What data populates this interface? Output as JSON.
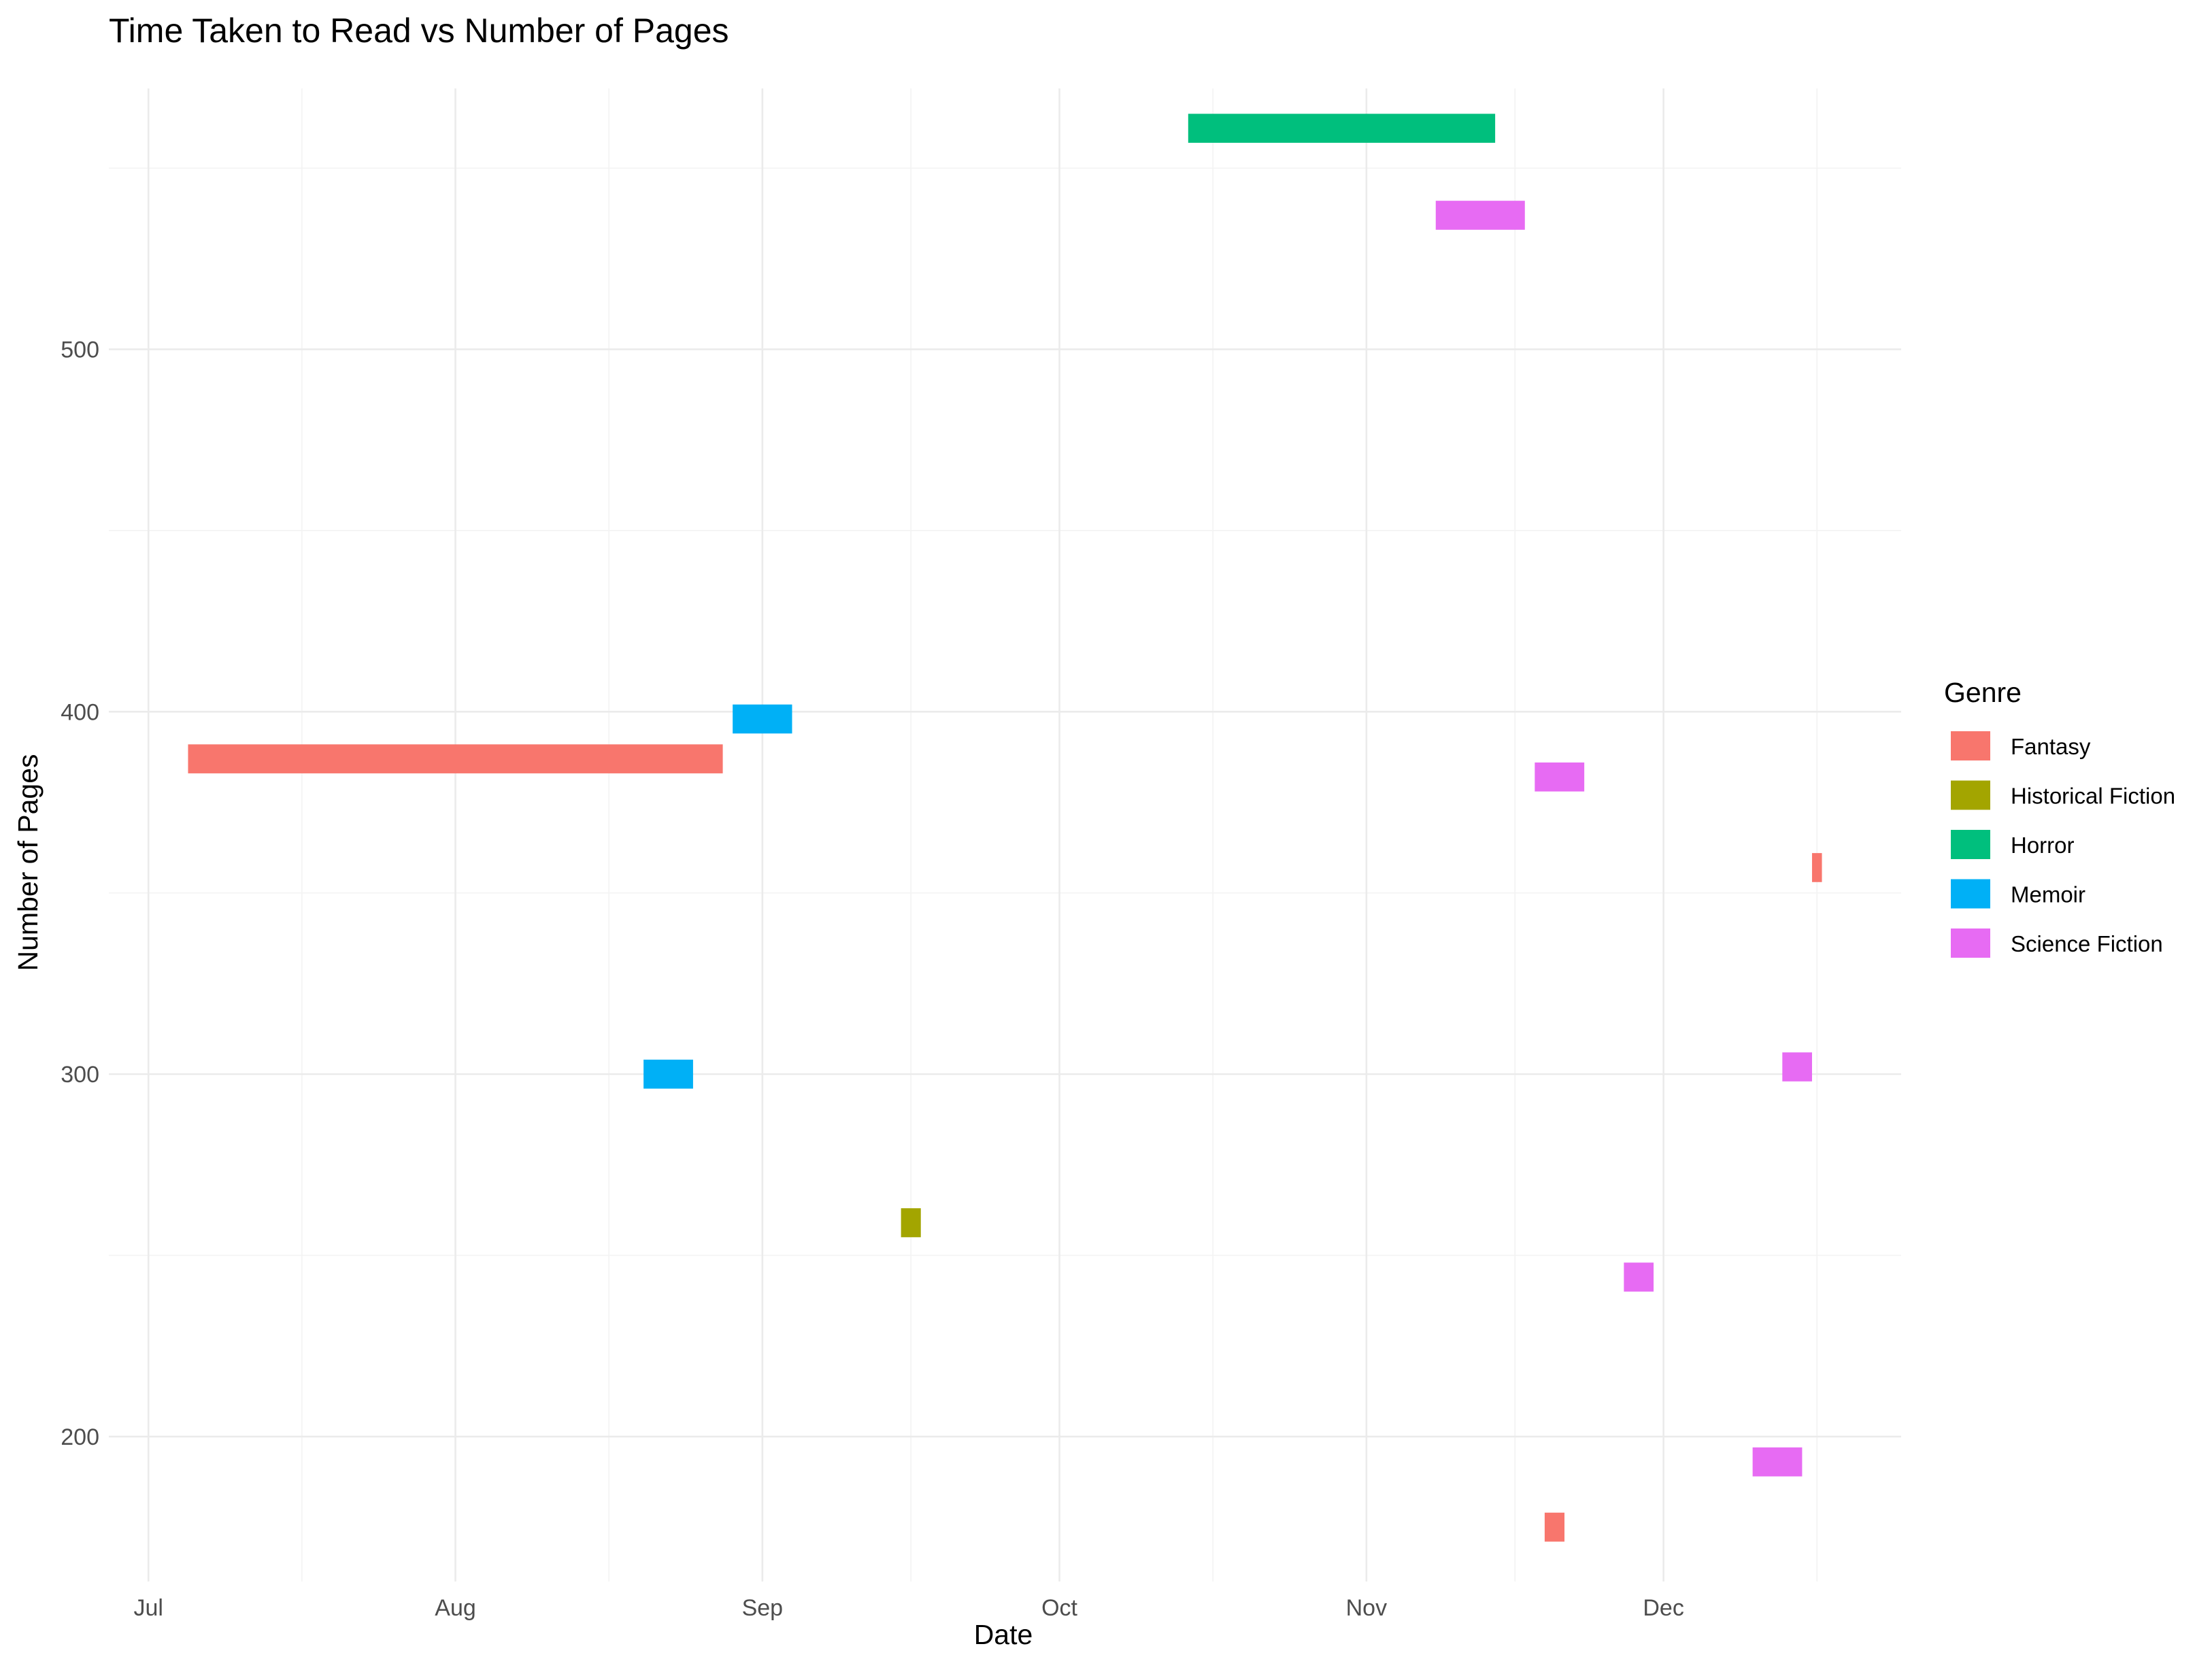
{
  "chart_data": {
    "type": "bar",
    "subtype": "horizontal-span",
    "title": "Time Taken to Read vs Number of Pages",
    "xlabel": "Date",
    "ylabel": "Number of Pages",
    "legend": {
      "title": "Genre",
      "position": "right"
    },
    "x_ticks": [
      {
        "date": "2023-07-01",
        "label": "Jul"
      },
      {
        "date": "2023-08-01",
        "label": "Aug"
      },
      {
        "date": "2023-09-01",
        "label": "Sep"
      },
      {
        "date": "2023-10-01",
        "label": "Oct"
      },
      {
        "date": "2023-11-01",
        "label": "Nov"
      },
      {
        "date": "2023-12-01",
        "label": "Dec"
      }
    ],
    "y_ticks": [
      200,
      300,
      400,
      500
    ],
    "xlim": [
      "2023-06-27",
      "2023-12-25"
    ],
    "ylim": [
      160,
      572
    ],
    "grid": true,
    "series": [
      {
        "name": "Fantasy",
        "color": "#F8766D"
      },
      {
        "name": "Historical Fiction",
        "color": "#A3A500"
      },
      {
        "name": "Horror",
        "color": "#00BF7D"
      },
      {
        "name": "Memoir",
        "color": "#00B0F6"
      },
      {
        "name": "Science Fiction",
        "color": "#E76BF3"
      }
    ],
    "data": [
      {
        "genre": "Fantasy",
        "start": "2023-07-05",
        "end": "2023-08-28",
        "pages": 387
      },
      {
        "genre": "Memoir",
        "start": "2023-08-20",
        "end": "2023-08-25",
        "pages": 300
      },
      {
        "genre": "Memoir",
        "start": "2023-08-29",
        "end": "2023-09-04",
        "pages": 398
      },
      {
        "genre": "Historical Fiction",
        "start": "2023-09-15",
        "end": "2023-09-17",
        "pages": 259
      },
      {
        "genre": "Horror",
        "start": "2023-10-14",
        "end": "2023-11-14",
        "pages": 561
      },
      {
        "genre": "Science Fiction",
        "start": "2023-11-08",
        "end": "2023-11-17",
        "pages": 537
      },
      {
        "genre": "Science Fiction",
        "start": "2023-11-18",
        "end": "2023-11-23",
        "pages": 382
      },
      {
        "genre": "Fantasy",
        "start": "2023-11-19",
        "end": "2023-11-21",
        "pages": 175
      },
      {
        "genre": "Science Fiction",
        "start": "2023-11-27",
        "end": "2023-11-30",
        "pages": 244
      },
      {
        "genre": "Science Fiction",
        "start": "2023-12-10",
        "end": "2023-12-15",
        "pages": 193
      },
      {
        "genre": "Science Fiction",
        "start": "2023-12-13",
        "end": "2023-12-16",
        "pages": 302
      },
      {
        "genre": "Fantasy",
        "start": "2023-12-16",
        "end": "2023-12-17",
        "pages": 357
      }
    ]
  }
}
